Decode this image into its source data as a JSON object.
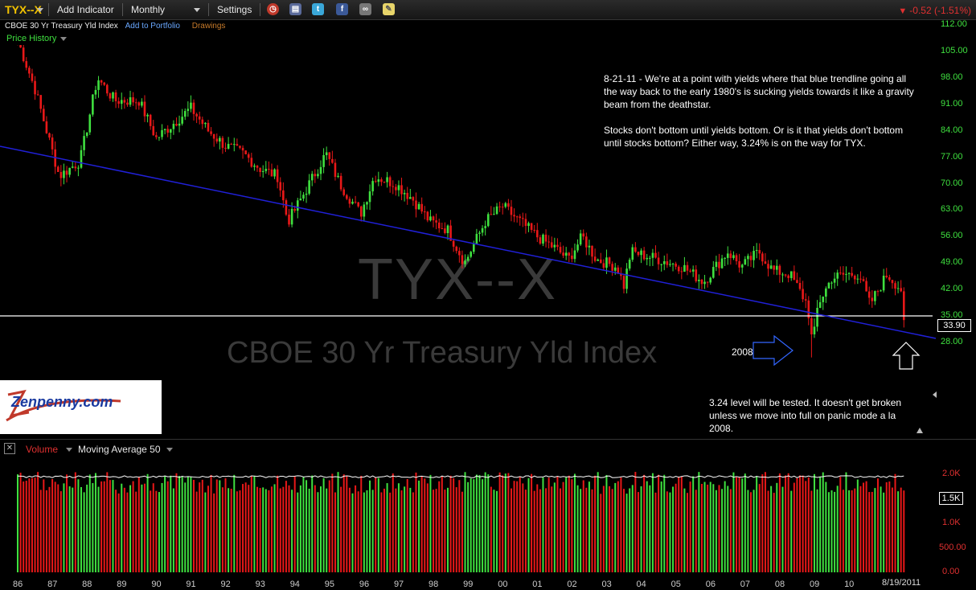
{
  "toolbar": {
    "ticker": "TYX--X",
    "add_indicator": "Add Indicator",
    "timeframe": "Monthly",
    "settings": "Settings",
    "change": "-0.52 (-1.51%)",
    "icons": [
      "alarm-clock-icon",
      "portfolio-icon",
      "twitter-icon",
      "facebook-icon",
      "link-icon",
      "note-icon"
    ]
  },
  "subheader": {
    "symbol_name": "CBOE 30 Yr Treasury Yld Index",
    "add_to_portfolio": "Add to Portfolio",
    "drawings": "Drawings"
  },
  "price_history": "Price History",
  "watermark": {
    "symbol": "TYX--X",
    "name": "CBOE 30 Yr Treasury Yld Index"
  },
  "annotations": {
    "note1_p1": "8-21-11 - We're at a point with yields where that blue trendline going all the way back to the early 1980's is sucking yields towards it like a gravity beam from the deathstar.",
    "note1_p2": "Stocks don't bottom until yields bottom. Or is it that yields don't bottom until stocks bottom? Either way, 3.24% is on the way for TYX.",
    "label_2008": "2008",
    "note2": "3.24 level will be tested. It doesn't get broken unless we move into full on panic mode a la 2008."
  },
  "logo_text": "Zenpenny.com",
  "price_axis": [
    "112.00",
    "105.00",
    "98.00",
    "91.00",
    "84.00",
    "77.00",
    "70.00",
    "63.00",
    "56.00",
    "49.00",
    "42.00",
    "35.00",
    "28.00"
  ],
  "current_price": "33.90",
  "volume_panel": {
    "volume_label": "Volume",
    "ma_label": "Moving Average 50",
    "axis": [
      "2.0K",
      "1.5K",
      "1.0K",
      "500.00",
      "0.00"
    ],
    "current": "1.5K"
  },
  "x_axis": [
    "86",
    "87",
    "88",
    "89",
    "90",
    "91",
    "92",
    "93",
    "94",
    "95",
    "96",
    "97",
    "98",
    "99",
    "00",
    "01",
    "02",
    "03",
    "04",
    "05",
    "06",
    "07",
    "08",
    "09",
    "10"
  ],
  "last_date": "8/19/2011",
  "colors": {
    "up": "#3fe03f",
    "down": "#e81818",
    "trendline": "#2020d8",
    "hline": "#ffffff",
    "accent_ticker": "#f2c200"
  },
  "chart_data": {
    "type": "candlestick",
    "title": "TYX--X",
    "subtitle": "CBOE 30 Yr Treasury Yld Index",
    "interval": "monthly",
    "price_range": [
      21.0,
      114.0
    ],
    "anchor_path": [
      [
        1986.0,
        108
      ],
      [
        1986.5,
        95
      ],
      [
        1987.2,
        72
      ],
      [
        1987.8,
        76
      ],
      [
        1988.3,
        98
      ],
      [
        1988.8,
        92
      ],
      [
        1989.5,
        92
      ],
      [
        1990.0,
        82
      ],
      [
        1990.5,
        86
      ],
      [
        1991.0,
        90
      ],
      [
        1991.5,
        84
      ],
      [
        1992.0,
        80
      ],
      [
        1992.5,
        78
      ],
      [
        1993.0,
        74
      ],
      [
        1993.5,
        72
      ],
      [
        1993.8,
        60
      ],
      [
        1994.0,
        63
      ],
      [
        1994.9,
        78
      ],
      [
        1995.3,
        70
      ],
      [
        1995.9,
        62
      ],
      [
        1996.3,
        72
      ],
      [
        1996.9,
        70
      ],
      [
        1997.4,
        66
      ],
      [
        1997.9,
        60
      ],
      [
        1998.4,
        58
      ],
      [
        1998.9,
        49
      ],
      [
        1999.5,
        60
      ],
      [
        2000.0,
        64
      ],
      [
        2000.5,
        60
      ],
      [
        2001.0,
        56
      ],
      [
        2001.5,
        53
      ],
      [
        2001.9,
        50
      ],
      [
        2002.3,
        56
      ],
      [
        2002.7,
        50
      ],
      [
        2003.3,
        48
      ],
      [
        2003.5,
        43
      ],
      [
        2003.7,
        52
      ],
      [
        2004.5,
        50
      ],
      [
        2005.2,
        48
      ],
      [
        2005.8,
        44
      ],
      [
        2006.5,
        52
      ],
      [
        2006.9,
        48
      ],
      [
        2007.4,
        52
      ],
      [
        2007.8,
        47
      ],
      [
        2008.3,
        46
      ],
      [
        2008.8,
        38
      ],
      [
        2008.95,
        27
      ],
      [
        2009.1,
        38
      ],
      [
        2009.5,
        45
      ],
      [
        2009.9,
        46
      ],
      [
        2010.3,
        46
      ],
      [
        2010.6,
        38
      ],
      [
        2011.1,
        46
      ],
      [
        2011.5,
        42
      ],
      [
        2011.6,
        33.9
      ]
    ],
    "trendline": {
      "from": [
        1986.0,
        77.0
      ],
      "to": [
        2011.6,
        31.5
      ]
    },
    "horizontal_line": 35.0,
    "last": 33.9,
    "change": -0.52,
    "change_pct": -1.51,
    "volume": {
      "series": "Volume",
      "ma": "Moving Average 50",
      "ma_value": 1950,
      "typical_range": [
        1600,
        2050
      ],
      "ylim": [
        0,
        2300
      ]
    }
  }
}
